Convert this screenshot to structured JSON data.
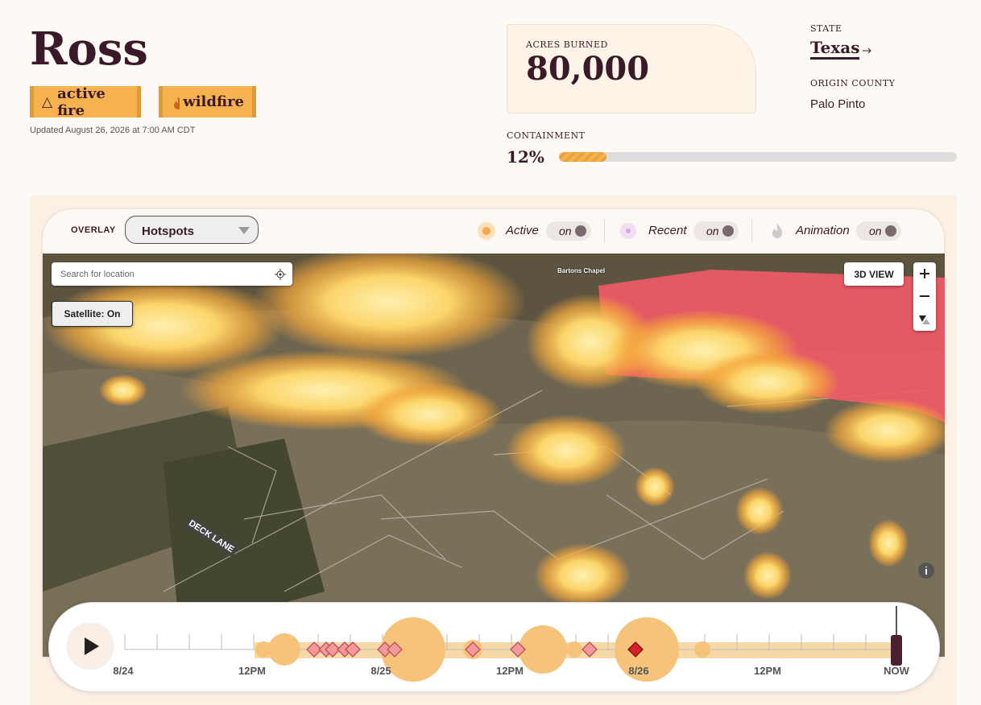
{
  "header": {
    "title": "Ross",
    "tags": [
      "active fire",
      "wildfire"
    ],
    "updated": "Updated August 26, 2026 at 7:00 AM CDT"
  },
  "stats": {
    "acres_label": "ACRES BURNED",
    "acres": "80,000",
    "state_label": "STATE",
    "state": "Texas",
    "county_label": "ORIGIN COUNTY",
    "county": "Palo Pinto",
    "containment_label": "CONTAINMENT",
    "containment": 12,
    "containment_label_value": "12%"
  },
  "toolbar": {
    "overlay_label": "OVERLAY",
    "overlay": "Hotspots",
    "toggles": [
      {
        "label": "Active",
        "state": "on"
      },
      {
        "label": "Recent",
        "state": "on"
      },
      {
        "label": "Animation",
        "state": "on"
      }
    ]
  },
  "map": {
    "search": "Search for location",
    "satellite": "Satellite: On",
    "view": "3D VIEW",
    "places": [
      "Bartons Chapel",
      "DECK LANE"
    ]
  },
  "timeline": {
    "labels": [
      "8/24",
      "12PM",
      "8/25",
      "12PM",
      "8/26",
      "12PM",
      "NOW"
    ]
  }
}
